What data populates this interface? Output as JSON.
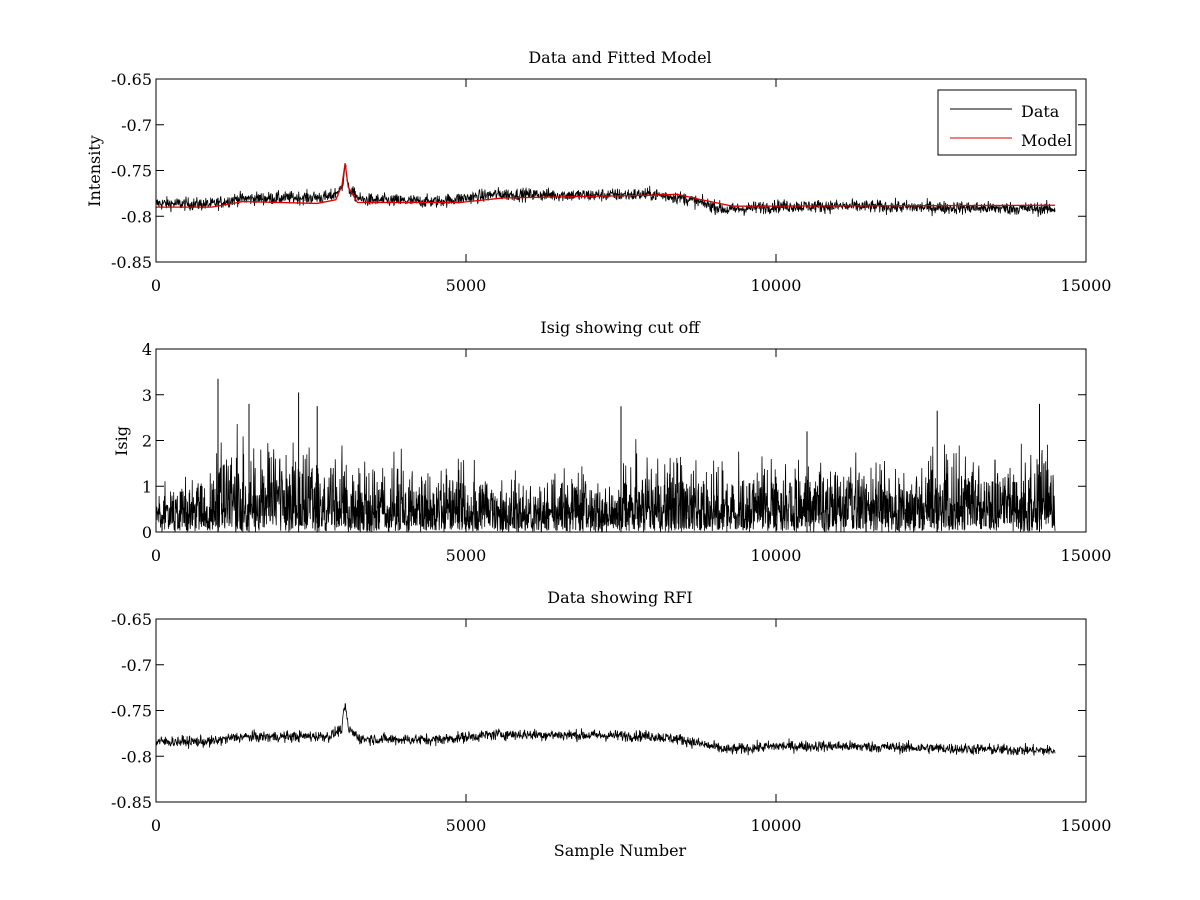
{
  "chart_data": [
    {
      "type": "line",
      "title": "Data and Fitted Model",
      "xlabel": "",
      "ylabel": "Intensity",
      "xlim": [
        0,
        15000
      ],
      "ylim": [
        -0.85,
        -0.65
      ],
      "xticks": [
        0,
        5000,
        10000,
        15000
      ],
      "xtick_labels": [
        "0",
        "5000",
        "10000",
        "15000"
      ],
      "yticks": [
        -0.85,
        -0.8,
        -0.75,
        -0.7,
        -0.65
      ],
      "ytick_labels": [
        "-0.85",
        "-0.8",
        "-0.75",
        "-0.7",
        "-0.65"
      ],
      "grid": false,
      "legend": {
        "position": "top-right",
        "entries": [
          "Data",
          "Model"
        ]
      },
      "series": [
        {
          "name": "Data",
          "color": "#000000",
          "x_range": [
            0,
            14500
          ],
          "noise_amplitude": 0.007,
          "baseline": [
            [
              0,
              -0.786
            ],
            [
              900,
              -0.787
            ],
            [
              1300,
              -0.781
            ],
            [
              2800,
              -0.779
            ],
            [
              3000,
              -0.77
            ],
            [
              3050,
              -0.742
            ],
            [
              3100,
              -0.77
            ],
            [
              3300,
              -0.782
            ],
            [
              4500,
              -0.784
            ],
            [
              5500,
              -0.776
            ],
            [
              7000,
              -0.777
            ],
            [
              8000,
              -0.776
            ],
            [
              8500,
              -0.78
            ],
            [
              9200,
              -0.793
            ],
            [
              10000,
              -0.789
            ],
            [
              11000,
              -0.789
            ],
            [
              14500,
              -0.792
            ]
          ]
        },
        {
          "name": "Model",
          "color": "#e00000",
          "x_range": [
            0,
            14500
          ],
          "values": [
            [
              0,
              -0.79
            ],
            [
              900,
              -0.79
            ],
            [
              1400,
              -0.784
            ],
            [
              2600,
              -0.786
            ],
            [
              2900,
              -0.782
            ],
            [
              3000,
              -0.766
            ],
            [
              3050,
              -0.742
            ],
            [
              3100,
              -0.768
            ],
            [
              3250,
              -0.785
            ],
            [
              4900,
              -0.785
            ],
            [
              5600,
              -0.78
            ],
            [
              8000,
              -0.777
            ],
            [
              8400,
              -0.776
            ],
            [
              8800,
              -0.782
            ],
            [
              9300,
              -0.789
            ],
            [
              14500,
              -0.788
            ]
          ]
        }
      ]
    },
    {
      "type": "line",
      "title": "Isig showing cut off",
      "xlabel": "",
      "ylabel": "Isig",
      "xlim": [
        0,
        15000
      ],
      "ylim": [
        0,
        4
      ],
      "xticks": [
        0,
        5000,
        10000,
        15000
      ],
      "xtick_labels": [
        "0",
        "5000",
        "10000",
        "15000"
      ],
      "yticks": [
        0,
        1,
        2,
        3,
        4
      ],
      "ytick_labels": [
        "0",
        "1",
        "2",
        "3",
        "4"
      ],
      "grid": false,
      "series": [
        {
          "name": "Isig",
          "color": "#000000",
          "x_range": [
            0,
            14500
          ],
          "envelope": [
            [
              0,
              1.3
            ],
            [
              900,
              1.5
            ],
            [
              1000,
              2.3
            ],
            [
              2700,
              2.2
            ],
            [
              2900,
              1.6
            ],
            [
              7400,
              1.4
            ],
            [
              7600,
              1.9
            ],
            [
              8600,
              1.7
            ],
            [
              10000,
              1.6
            ],
            [
              13000,
              1.8
            ],
            [
              14500,
              2.1
            ]
          ],
          "peaks": [
            [
              1000,
              3.35
            ],
            [
              1500,
              2.8
            ],
            [
              2300,
              3.05
            ],
            [
              2600,
              2.75
            ],
            [
              7500,
              2.75
            ],
            [
              10500,
              2.2
            ],
            [
              12600,
              2.65
            ],
            [
              14250,
              2.8
            ]
          ]
        }
      ]
    },
    {
      "type": "line",
      "title": "Data showing RFI",
      "xlabel": "Sample Number",
      "ylabel": "",
      "xlim": [
        0,
        15000
      ],
      "ylim": [
        -0.85,
        -0.65
      ],
      "xticks": [
        0,
        5000,
        10000,
        15000
      ],
      "xtick_labels": [
        "0",
        "5000",
        "10000",
        "15000"
      ],
      "yticks": [
        -0.85,
        -0.8,
        -0.75,
        -0.7,
        -0.65
      ],
      "ytick_labels": [
        "-0.85",
        "-0.8",
        "-0.75",
        "-0.7",
        "-0.65"
      ],
      "grid": false,
      "series": [
        {
          "name": "Data",
          "color": "#000000",
          "x_range": [
            0,
            14500
          ],
          "noise_amplitude": 0.006,
          "baseline": [
            [
              0,
              -0.784
            ],
            [
              900,
              -0.784
            ],
            [
              1300,
              -0.779
            ],
            [
              2800,
              -0.778
            ],
            [
              3000,
              -0.77
            ],
            [
              3050,
              -0.742
            ],
            [
              3100,
              -0.77
            ],
            [
              3300,
              -0.781
            ],
            [
              4500,
              -0.782
            ],
            [
              5500,
              -0.776
            ],
            [
              7000,
              -0.777
            ],
            [
              8000,
              -0.778
            ],
            [
              8500,
              -0.782
            ],
            [
              9200,
              -0.793
            ],
            [
              10000,
              -0.789
            ],
            [
              11000,
              -0.789
            ],
            [
              14500,
              -0.794
            ]
          ]
        }
      ]
    }
  ]
}
